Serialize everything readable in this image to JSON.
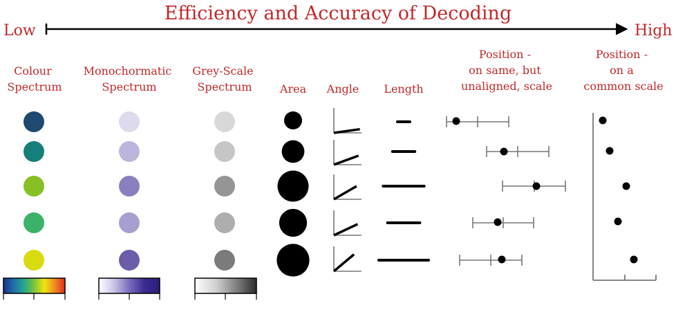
{
  "title": "Efficiency and Accuracy of Decoding",
  "scale": {
    "low": "Low",
    "high": "High"
  },
  "accent_color": "#c0282a",
  "columns": [
    {
      "key": "colour",
      "lines": [
        "Colour",
        "Spectrum"
      ]
    },
    {
      "key": "mono",
      "lines": [
        "Monochormatic",
        "Spectrum"
      ]
    },
    {
      "key": "grey",
      "lines": [
        "Grey-Scale",
        "Spectrum"
      ]
    },
    {
      "key": "area",
      "lines": [
        "Area"
      ]
    },
    {
      "key": "angle",
      "lines": [
        "Angle"
      ]
    },
    {
      "key": "length",
      "lines": [
        "Length"
      ]
    },
    {
      "key": "unaligned",
      "lines": [
        "Position -",
        "on same, but",
        "unaligned, scale"
      ]
    },
    {
      "key": "common",
      "lines": [
        "Position -",
        "on a",
        "common scale"
      ]
    }
  ],
  "rows": {
    "colour_fill": [
      "#1d4a6e",
      "#177f7a",
      "#86c024",
      "#3bb268",
      "#d8dc0e"
    ],
    "mono_fill": [
      "#dcdaec",
      "#bcb6dc",
      "#8a7fbf",
      "#a79fcf",
      "#6c5ca9"
    ],
    "grey_fill": [
      "#d8d8d8",
      "#c6c6c6",
      "#959595",
      "#aeaeae",
      "#7b7b7b"
    ],
    "area_value": [
      1.0,
      1.6,
      3.0,
      2.4,
      3.3
    ],
    "angle_deg": [
      8,
      20,
      30,
      25,
      40
    ],
    "length_value": [
      1.0,
      1.8,
      3.3,
      2.6,
      4.0
    ]
  },
  "colour_bar_stops": [
    "#1d2f8c",
    "#1f6fa8",
    "#24a78e",
    "#7cc43a",
    "#f1e40f",
    "#f08a22",
    "#e3291e"
  ],
  "mono_bar_stops": [
    "#ffffff",
    "#c9c3e6",
    "#7a6dbd",
    "#3a2a92",
    "#2c1f7a"
  ]
}
